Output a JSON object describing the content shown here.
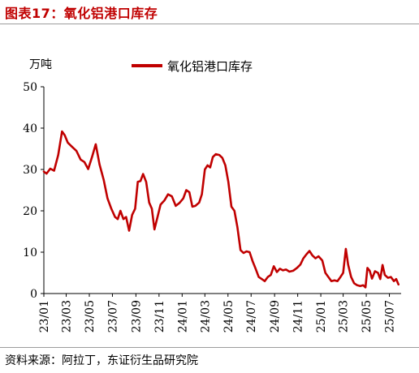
{
  "figure": {
    "title": "图表17：氧化铝港口库存",
    "source": "资料来源：阿拉丁，东证衍生品研究院"
  },
  "chart_data": {
    "type": "line",
    "unit_label": "万吨",
    "ylim": [
      0,
      50
    ],
    "yticks": [
      0,
      10,
      20,
      30,
      40,
      50
    ],
    "xlim": [
      "2023-01",
      "2025-08"
    ],
    "xtick_labels": [
      "23/01",
      "23/03",
      "23/05",
      "23/07",
      "23/09",
      "23/11",
      "24/01",
      "24/03",
      "24/05",
      "24/07",
      "24/09",
      "24/11",
      "25/01",
      "25/03",
      "25/05",
      "25/07"
    ],
    "legend_position": "top-center",
    "grid": false,
    "colors": {
      "series": "#c00000"
    },
    "series": [
      {
        "name": "氧化铝港口库存",
        "points": [
          [
            "2023-01-01",
            29.5
          ],
          [
            "2023-01-08",
            29.0
          ],
          [
            "2023-01-18",
            30.2
          ],
          [
            "2023-01-28",
            29.7
          ],
          [
            "2023-02-08",
            33.5
          ],
          [
            "2023-02-18",
            39.2
          ],
          [
            "2023-02-25",
            38.3
          ],
          [
            "2023-03-05",
            36.5
          ],
          [
            "2023-03-15",
            35.6
          ],
          [
            "2023-03-28",
            34.5
          ],
          [
            "2023-04-08",
            32.4
          ],
          [
            "2023-04-18",
            31.8
          ],
          [
            "2023-04-28",
            30.1
          ],
          [
            "2023-05-08",
            33.0
          ],
          [
            "2023-05-18",
            36.1
          ],
          [
            "2023-05-28",
            31.2
          ],
          [
            "2023-06-08",
            27.5
          ],
          [
            "2023-06-18",
            23.0
          ],
          [
            "2023-06-28",
            20.5
          ],
          [
            "2023-07-08",
            18.5
          ],
          [
            "2023-07-15",
            18.0
          ],
          [
            "2023-07-22",
            20.0
          ],
          [
            "2023-07-30",
            18.0
          ],
          [
            "2023-08-06",
            18.5
          ],
          [
            "2023-08-14",
            15.2
          ],
          [
            "2023-08-22",
            19.0
          ],
          [
            "2023-08-30",
            20.5
          ],
          [
            "2023-09-06",
            27.0
          ],
          [
            "2023-09-13",
            27.2
          ],
          [
            "2023-09-20",
            28.9
          ],
          [
            "2023-09-28",
            27.0
          ],
          [
            "2023-10-06",
            22.0
          ],
          [
            "2023-10-13",
            20.5
          ],
          [
            "2023-10-20",
            15.5
          ],
          [
            "2023-10-28",
            18.5
          ],
          [
            "2023-11-05",
            21.5
          ],
          [
            "2023-11-15",
            22.5
          ],
          [
            "2023-11-25",
            24.0
          ],
          [
            "2023-12-05",
            23.5
          ],
          [
            "2023-12-15",
            21.2
          ],
          [
            "2023-12-25",
            21.9
          ],
          [
            "2024-01-04",
            23.0
          ],
          [
            "2024-01-12",
            25.0
          ],
          [
            "2024-01-20",
            24.5
          ],
          [
            "2024-01-28",
            21.0
          ],
          [
            "2024-02-05",
            21.2
          ],
          [
            "2024-02-15",
            22.0
          ],
          [
            "2024-02-22",
            24.0
          ],
          [
            "2024-03-01",
            30.0
          ],
          [
            "2024-03-08",
            31.0
          ],
          [
            "2024-03-15",
            30.5
          ],
          [
            "2024-03-22",
            33.0
          ],
          [
            "2024-03-30",
            33.7
          ],
          [
            "2024-04-08",
            33.5
          ],
          [
            "2024-04-16",
            32.8
          ],
          [
            "2024-04-24",
            31.0
          ],
          [
            "2024-05-02",
            27.0
          ],
          [
            "2024-05-10",
            21.0
          ],
          [
            "2024-05-18",
            20.0
          ],
          [
            "2024-05-26",
            16.0
          ],
          [
            "2024-06-03",
            10.5
          ],
          [
            "2024-06-11",
            9.8
          ],
          [
            "2024-06-19",
            10.2
          ],
          [
            "2024-06-27",
            10.0
          ],
          [
            "2024-07-05",
            7.8
          ],
          [
            "2024-07-13",
            6.0
          ],
          [
            "2024-07-21",
            4.0
          ],
          [
            "2024-07-29",
            3.5
          ],
          [
            "2024-08-06",
            3.0
          ],
          [
            "2024-08-14",
            4.0
          ],
          [
            "2024-08-22",
            4.5
          ],
          [
            "2024-08-30",
            6.6
          ],
          [
            "2024-09-07",
            5.2
          ],
          [
            "2024-09-15",
            6.0
          ],
          [
            "2024-09-23",
            5.6
          ],
          [
            "2024-10-01",
            5.8
          ],
          [
            "2024-10-10",
            5.3
          ],
          [
            "2024-10-20",
            5.5
          ],
          [
            "2024-10-30",
            6.2
          ],
          [
            "2024-11-08",
            7.0
          ],
          [
            "2024-11-16",
            8.5
          ],
          [
            "2024-11-24",
            9.5
          ],
          [
            "2024-12-02",
            10.3
          ],
          [
            "2024-12-10",
            9.2
          ],
          [
            "2024-12-18",
            8.5
          ],
          [
            "2024-12-26",
            9.0
          ],
          [
            "2025-01-05",
            8.0
          ],
          [
            "2025-01-13",
            5.0
          ],
          [
            "2025-01-21",
            4.0
          ],
          [
            "2025-01-29",
            3.0
          ],
          [
            "2025-02-06",
            3.2
          ],
          [
            "2025-02-14",
            3.0
          ],
          [
            "2025-02-22",
            4.0
          ],
          [
            "2025-03-01",
            5.0
          ],
          [
            "2025-03-08",
            10.8
          ],
          [
            "2025-03-14",
            7.0
          ],
          [
            "2025-03-22",
            4.0
          ],
          [
            "2025-03-30",
            2.5
          ],
          [
            "2025-04-07",
            2.0
          ],
          [
            "2025-04-15",
            1.8
          ],
          [
            "2025-04-23",
            2.0
          ],
          [
            "2025-04-29",
            1.5
          ],
          [
            "2025-05-04",
            6.2
          ],
          [
            "2025-05-10",
            5.5
          ],
          [
            "2025-05-16",
            3.6
          ],
          [
            "2025-05-24",
            5.4
          ],
          [
            "2025-06-01",
            5.0
          ],
          [
            "2025-06-07",
            3.5
          ],
          [
            "2025-06-13",
            6.9
          ],
          [
            "2025-06-19",
            4.5
          ],
          [
            "2025-06-27",
            3.8
          ],
          [
            "2025-07-05",
            4.0
          ],
          [
            "2025-07-13",
            3.0
          ],
          [
            "2025-07-19",
            3.5
          ],
          [
            "2025-07-25",
            2.2
          ]
        ]
      }
    ]
  }
}
